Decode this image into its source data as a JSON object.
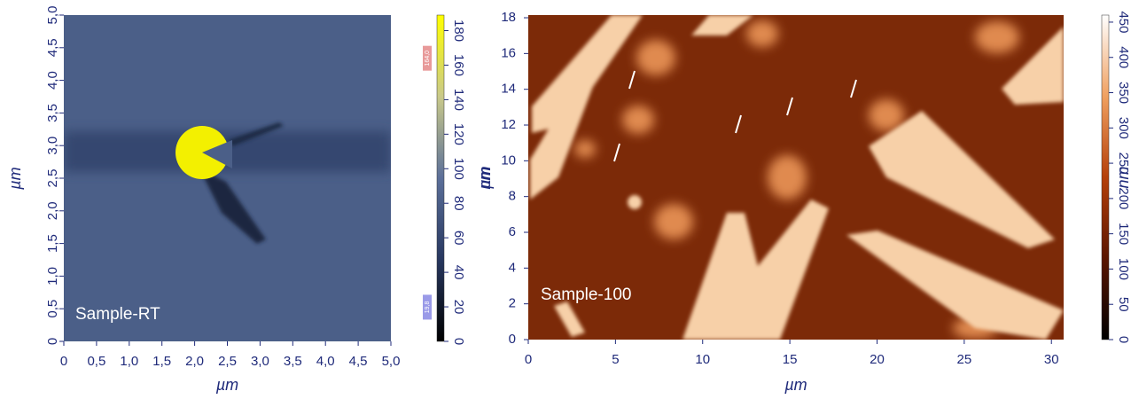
{
  "chart_data": [
    {
      "type": "heatmap",
      "label": "Sample-RT",
      "xlabel": "µm",
      "ylabel": "µm",
      "colorbar_label": "nm",
      "xlim": [
        0,
        5
      ],
      "ylim": [
        0,
        5
      ],
      "xticks": [
        0,
        {
          "value": 0.5,
          "label": "0,5"
        },
        {
          "value": 1,
          "label": "1,0"
        },
        {
          "value": 1.5,
          "label": "1,5"
        },
        {
          "value": 2,
          "label": "2,0"
        },
        {
          "value": 2.5,
          "label": "2,5"
        },
        {
          "value": 3,
          "label": "3,0"
        },
        {
          "value": 3.5,
          "label": "3,5"
        },
        {
          "value": 4,
          "label": "4,0"
        },
        {
          "value": 4.5,
          "label": "4,5"
        },
        {
          "value": 5,
          "label": "5,0"
        }
      ],
      "yticks": [
        0,
        {
          "value": 0.5,
          "label": "0,5"
        },
        {
          "value": 1,
          "label": "1,0"
        },
        {
          "value": 1.5,
          "label": "1,5"
        },
        {
          "value": 2,
          "label": "2,0"
        },
        {
          "value": 2.5,
          "label": "2,5"
        },
        {
          "value": 3,
          "label": "3,0"
        },
        {
          "value": 3.5,
          "label": "3,5"
        },
        {
          "value": 4,
          "label": "4,0"
        },
        {
          "value": 4.5,
          "label": "4,5"
        },
        {
          "value": 5,
          "label": "5,0"
        }
      ],
      "clim": [
        0,
        189
      ],
      "cticks": [
        0,
        20,
        40,
        60,
        80,
        100,
        120,
        140,
        160,
        180
      ],
      "colormap": [
        "#000000",
        "#27375f",
        "#5b6f99",
        "#c9c98a",
        "#ffff00"
      ],
      "markers": [
        {
          "value": 164.0,
          "label": "164,0",
          "color": "#e89a9a"
        },
        {
          "value": 19.8,
          "label": "19,8",
          "color": "#9a9ae8"
        }
      ]
    },
    {
      "type": "heatmap",
      "label": "Sample-100",
      "xlabel": "µm",
      "ylabel": "µm",
      "colorbar_label": "nm",
      "xlim": [
        0,
        30.7
      ],
      "ylim": [
        0,
        18.15
      ],
      "xticks": [
        0,
        5,
        10,
        15,
        20,
        25,
        30
      ],
      "yticks": [
        0,
        2,
        4,
        6,
        8,
        10,
        12,
        14,
        16,
        18
      ],
      "clim": [
        0,
        460
      ],
      "cticks": [
        0,
        50,
        100,
        150,
        200,
        250,
        300,
        350,
        400,
        450
      ],
      "colormap": [
        "#000000",
        "#5a1500",
        "#b5400a",
        "#f0a060",
        "#ffffff"
      ]
    }
  ]
}
